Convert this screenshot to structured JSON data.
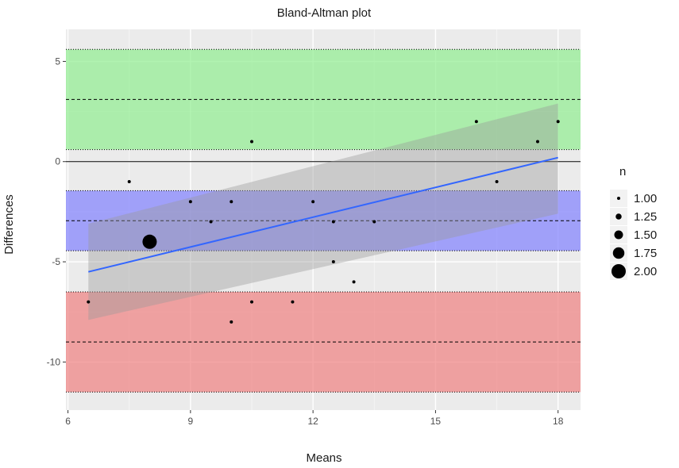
{
  "chart_data": {
    "type": "scatter",
    "title": "Bland-Altman plot",
    "xlabel": "Means",
    "ylabel": "Differences",
    "xlim": [
      5.95,
      18.55
    ],
    "ylim": [
      -12.4,
      6.6
    ],
    "x_ticks": [
      6,
      9,
      12,
      15,
      18
    ],
    "y_ticks": [
      5,
      0,
      -5,
      -10
    ],
    "y_tick_labels": [
      "5",
      "0",
      "-5",
      "-10"
    ],
    "grid": true,
    "legend": {
      "title": "n",
      "placement": "right",
      "entries": [
        {
          "label": "1.00",
          "value": 1.0
        },
        {
          "label": "1.25",
          "value": 1.25
        },
        {
          "label": "1.50",
          "value": 1.5
        },
        {
          "label": "1.75",
          "value": 1.75
        },
        {
          "label": "2.00",
          "value": 2.0
        }
      ]
    },
    "colors": {
      "panel_bg": "#ebebeb",
      "upper_band": "#90ee90",
      "mean_band": "#8080ff",
      "lower_band": "#f08080",
      "regression_line": "#3366ff",
      "confidence_band": "#999999",
      "points": "#000000"
    },
    "bands": {
      "upper_loa": {
        "center": 3.1,
        "low": 0.6,
        "high": 5.6
      },
      "mean_difference": {
        "center": -2.95,
        "low": -4.45,
        "high": -1.45
      },
      "lower_loa": {
        "center": -9.0,
        "low": -11.5,
        "high": -6.5
      }
    },
    "zero_line": 0,
    "regression": {
      "x": [
        6.5,
        18.0
      ],
      "y": [
        -5.5,
        0.2
      ],
      "ci_lower": [
        -7.9,
        -2.6
      ],
      "ci_upper": [
        -3.1,
        2.9
      ]
    },
    "points": [
      {
        "x": 6.5,
        "y": -7,
        "n": 1
      },
      {
        "x": 7.5,
        "y": -1,
        "n": 1
      },
      {
        "x": 8.0,
        "y": -4,
        "n": 2
      },
      {
        "x": 9.0,
        "y": -2,
        "n": 1
      },
      {
        "x": 9.5,
        "y": -3,
        "n": 1
      },
      {
        "x": 10.0,
        "y": -2,
        "n": 1
      },
      {
        "x": 10.0,
        "y": -8,
        "n": 1
      },
      {
        "x": 10.5,
        "y": 1,
        "n": 1
      },
      {
        "x": 10.5,
        "y": -7,
        "n": 1
      },
      {
        "x": 11.5,
        "y": -7,
        "n": 1
      },
      {
        "x": 12.0,
        "y": -2,
        "n": 1
      },
      {
        "x": 12.5,
        "y": -3,
        "n": 1
      },
      {
        "x": 12.5,
        "y": -5,
        "n": 1
      },
      {
        "x": 13.0,
        "y": -6,
        "n": 1
      },
      {
        "x": 13.5,
        "y": -3,
        "n": 1
      },
      {
        "x": 16.0,
        "y": 2,
        "n": 1
      },
      {
        "x": 16.5,
        "y": -1,
        "n": 1
      },
      {
        "x": 17.5,
        "y": 1,
        "n": 1
      },
      {
        "x": 18.0,
        "y": 2,
        "n": 1
      }
    ]
  }
}
